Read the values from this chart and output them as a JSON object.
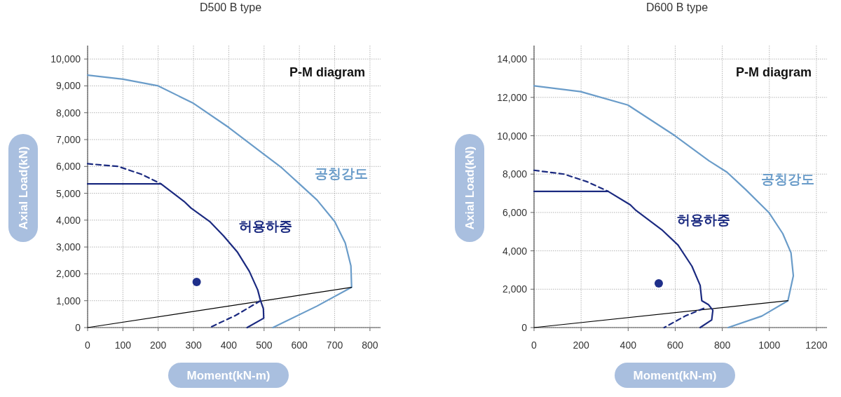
{
  "chart_data": [
    {
      "type": "line",
      "title": "D500 B type",
      "xlabel": "Moment(kN-m)",
      "ylabel": "Axial Load(kN)",
      "xlim": [
        0,
        830
      ],
      "ylim": [
        0,
        10500
      ],
      "grid": true,
      "xticks": [
        0,
        100,
        200,
        300,
        400,
        500,
        600,
        700,
        800
      ],
      "yticks": [
        0,
        {
          "value": 1000,
          "label": "1,000"
        },
        {
          "value": 2000,
          "label": "2,000"
        },
        {
          "value": 3000,
          "label": "3,000"
        },
        {
          "value": 4000,
          "label": "4,000"
        },
        {
          "value": 5000,
          "label": "5,000"
        },
        {
          "value": 6000,
          "label": "6,000"
        },
        {
          "value": 7000,
          "label": "7,000"
        },
        {
          "value": 8000,
          "label": "8,000"
        },
        {
          "value": 9000,
          "label": "9,000"
        },
        {
          "value": 10000,
          "label": "10,000"
        }
      ],
      "annotations": [
        "P-M diagram"
      ],
      "series": [
        {
          "name": "공칭강도",
          "color": "#6a9cc9",
          "line_style": "solid",
          "x": [
            0,
            100,
            200,
            300,
            400,
            500,
            550,
            600,
            650,
            700,
            730,
            746,
            748,
            650,
            525
          ],
          "values": [
            9400,
            9250,
            9000,
            8350,
            7450,
            6450,
            5950,
            5350,
            4750,
            3950,
            3150,
            2300,
            1500,
            800,
            0
          ]
        },
        {
          "color": "#000000",
          "line_style": "solid",
          "x": [
            0,
            748
          ],
          "values": [
            0,
            1500
          ]
        },
        {
          "name": "허용하중",
          "color": "#1b2a80",
          "line_style": "solid",
          "x": [
            0,
            208,
            273,
            293,
            346,
            386,
            425,
            458,
            482,
            490,
            498,
            499,
            452
          ],
          "values": [
            5350,
            5350,
            4700,
            4450,
            3950,
            3400,
            2800,
            2100,
            1400,
            1000,
            700,
            350,
            0
          ]
        },
        {
          "color": "#1b2a80",
          "line_style": "dashed",
          "x": [
            0,
            87,
            154,
            208
          ],
          "values": [
            6100,
            6000,
            5700,
            5350
          ]
        },
        {
          "color": "#1b2a80",
          "line_style": "dashed",
          "x": [
            490,
            419,
            346
          ],
          "values": [
            1000,
            450,
            0
          ]
        },
        {
          "type": "scatter",
          "color": "#1f2f8a",
          "marker": "circle",
          "x": [
            309
          ],
          "values": [
            1700
          ]
        }
      ]
    },
    {
      "type": "line",
      "title": "D600 B type",
      "xlabel": "Moment(kN-m)",
      "ylabel": "Axial Load(kN)",
      "xlim": [
        0,
        1245
      ],
      "ylim": [
        0,
        14700
      ],
      "grid": true,
      "xticks": [
        0,
        200,
        400,
        600,
        800,
        1000,
        1200
      ],
      "yticks": [
        0,
        {
          "value": 2000,
          "label": "2,000"
        },
        {
          "value": 4000,
          "label": "4,000"
        },
        {
          "value": 6000,
          "label": "6,000"
        },
        {
          "value": 8000,
          "label": "8,000"
        },
        {
          "value": 10000,
          "label": "10,000"
        },
        {
          "value": 12000,
          "label": "12,000"
        },
        {
          "value": 14000,
          "label": "14,000"
        }
      ],
      "annotations": [
        "P-M diagram"
      ],
      "series": [
        {
          "name": "공칭강도",
          "color": "#6a9cc9",
          "line_style": "solid",
          "x": [
            0,
            198,
            399,
            599,
            743,
            820,
            899,
            998,
            1057,
            1092,
            1102,
            1079,
            968,
            825
          ],
          "values": [
            12600,
            12300,
            11600,
            10000,
            8700,
            8100,
            7200,
            6000,
            4900,
            3900,
            2700,
            1400,
            600,
            0
          ]
        },
        {
          "color": "#000000",
          "line_style": "solid",
          "x": [
            0,
            1079
          ],
          "values": [
            0,
            1400
          ]
        },
        {
          "name": "허용하중",
          "color": "#1b2a80",
          "line_style": "solid",
          "x": [
            0,
            315,
            409,
            434,
            543,
            612,
            671,
            706,
            713,
            741,
            760,
            755,
            706
          ],
          "values": [
            7100,
            7100,
            6400,
            6100,
            5100,
            4300,
            3200,
            2200,
            1400,
            1200,
            900,
            400,
            0
          ]
        },
        {
          "color": "#1b2a80",
          "line_style": "dashed",
          "x": [
            0,
            127,
            226,
            315
          ],
          "values": [
            8200,
            8000,
            7600,
            7100
          ]
        },
        {
          "color": "#1b2a80",
          "line_style": "dashed",
          "x": [
            721,
            642,
            553
          ],
          "values": [
            1000,
            600,
            0
          ]
        },
        {
          "type": "scatter",
          "color": "#1f2f8a",
          "marker": "circle",
          "x": [
            530
          ],
          "values": [
            2300
          ]
        }
      ]
    }
  ]
}
